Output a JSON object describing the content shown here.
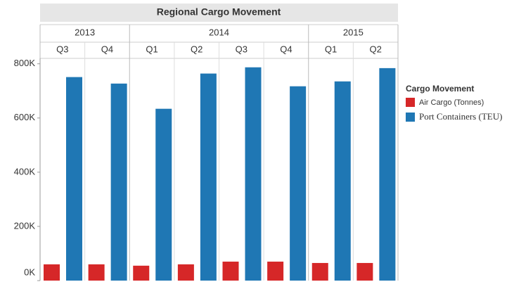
{
  "chart_data": {
    "type": "bar",
    "title": "Regional Cargo Movement",
    "groups": [
      {
        "name": "2013",
        "quarters": [
          "Q3",
          "Q4"
        ]
      },
      {
        "name": "2014",
        "quarters": [
          "Q1",
          "Q2",
          "Q3",
          "Q4"
        ]
      },
      {
        "name": "2015",
        "quarters": [
          "Q1",
          "Q2"
        ]
      }
    ],
    "series": [
      {
        "name": "Air Cargo (Tonnes)",
        "color": "#d62728",
        "values": [
          60000,
          60000,
          55000,
          60000,
          70000,
          70000,
          65000,
          65000
        ]
      },
      {
        "name": "Port Containers (TEU)",
        "color": "#1f77b4",
        "values": [
          751000,
          727000,
          634000,
          764000,
          787000,
          717000,
          735000,
          784000
        ]
      }
    ],
    "ylim": [
      0,
      820000
    ],
    "yticks": [
      {
        "value": 0,
        "label": "0K"
      },
      {
        "value": 200000,
        "label": "200K"
      },
      {
        "value": 400000,
        "label": "400K"
      },
      {
        "value": 600000,
        "label": "600K"
      },
      {
        "value": 800000,
        "label": "800K"
      }
    ],
    "legend_title": "Cargo Movement",
    "legend": "right"
  }
}
